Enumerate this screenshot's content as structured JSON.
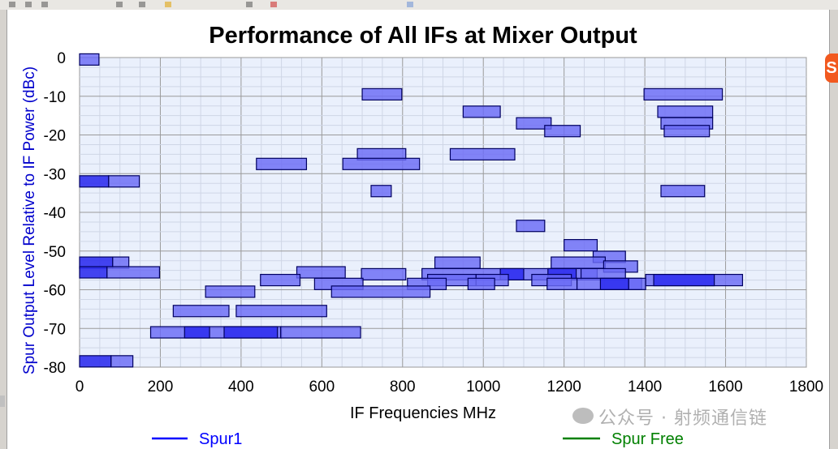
{
  "toolbar": {
    "icons": [
      "arrow-icon",
      "select-icon",
      "zoom-icon",
      "chart-icon",
      "grid-icon",
      "star-icon",
      "copy-icon",
      "close-icon",
      "export-icon"
    ]
  },
  "side_badge": "S",
  "watermark": "公众号 · 射频通信链",
  "chart_data": {
    "type": "bar",
    "title": "Performance of All IFs at Mixer Output",
    "xlabel": "IF Frequencies MHz",
    "ylabel": "Spur Output Level Relative to IF Power (dBc)",
    "xlim": [
      0,
      1800
    ],
    "ylim": [
      -80,
      0
    ],
    "xticks": [
      "0",
      "200",
      "400",
      "600",
      "800",
      "1000",
      "1200",
      "1400",
      "1600",
      "1800"
    ],
    "yticks": [
      "0",
      "-10",
      "-20",
      "-30",
      "-40",
      "-50",
      "-60",
      "-70",
      "-80"
    ],
    "grid": true,
    "legend_position": "bottom",
    "legend": [
      {
        "name": "Spur1",
        "color": "#0000ff"
      },
      {
        "name": "Spur Free",
        "color": "#008000"
      }
    ],
    "colors": {
      "plot_bg": "#eaf0fc",
      "bar_fill": "#6a6af5",
      "bar_fill_dark": "#3030ee",
      "bar_stroke": "#000060",
      "ylabel": "#0000cc",
      "grid": "#9a9a9a"
    },
    "spurs": [
      {
        "x0": 0,
        "x1": 48,
        "y": -0.5,
        "dark": false
      },
      {
        "x0": 700,
        "x1": 798,
        "y": -9.5,
        "dark": false
      },
      {
        "x0": 1398,
        "x1": 1592,
        "y": -9.5,
        "dark": false
      },
      {
        "x0": 950,
        "x1": 1042,
        "y": -14,
        "dark": false
      },
      {
        "x0": 1082,
        "x1": 1168,
        "y": -17,
        "dark": false
      },
      {
        "x0": 1152,
        "x1": 1240,
        "y": -19,
        "dark": false
      },
      {
        "x0": 1432,
        "x1": 1568,
        "y": -14,
        "dark": false
      },
      {
        "x0": 1440,
        "x1": 1568,
        "y": -17,
        "dark": false
      },
      {
        "x0": 1448,
        "x1": 1560,
        "y": -19,
        "dark": false
      },
      {
        "x0": 688,
        "x1": 808,
        "y": -25,
        "dark": false
      },
      {
        "x0": 918,
        "x1": 1078,
        "y": -25,
        "dark": false
      },
      {
        "x0": 438,
        "x1": 562,
        "y": -27.5,
        "dark": false
      },
      {
        "x0": 652,
        "x1": 842,
        "y": -27.5,
        "dark": false
      },
      {
        "x0": 0,
        "x1": 72,
        "y": -32,
        "dark": true
      },
      {
        "x0": 72,
        "x1": 148,
        "y": -32,
        "dark": false
      },
      {
        "x0": 722,
        "x1": 772,
        "y": -34.5,
        "dark": false
      },
      {
        "x0": 1440,
        "x1": 1548,
        "y": -34.5,
        "dark": false
      },
      {
        "x0": 1082,
        "x1": 1152,
        "y": -43.5,
        "dark": false
      },
      {
        "x0": 1200,
        "x1": 1282,
        "y": -48.5,
        "dark": false
      },
      {
        "x0": 1272,
        "x1": 1352,
        "y": -51.5,
        "dark": false
      },
      {
        "x0": 0,
        "x1": 82,
        "y": -53,
        "dark": true
      },
      {
        "x0": 82,
        "x1": 122,
        "y": -53,
        "dark": false
      },
      {
        "x0": 880,
        "x1": 992,
        "y": -53,
        "dark": false
      },
      {
        "x0": 1168,
        "x1": 1302,
        "y": -53,
        "dark": false
      },
      {
        "x0": 1298,
        "x1": 1382,
        "y": -54,
        "dark": false
      },
      {
        "x0": 0,
        "x1": 68,
        "y": -55.5,
        "dark": true
      },
      {
        "x0": 68,
        "x1": 198,
        "y": -55.5,
        "dark": false
      },
      {
        "x0": 538,
        "x1": 658,
        "y": -55.5,
        "dark": false
      },
      {
        "x0": 698,
        "x1": 808,
        "y": -56,
        "dark": false
      },
      {
        "x0": 848,
        "x1": 1282,
        "y": -56,
        "dark": false
      },
      {
        "x0": 1042,
        "x1": 1100,
        "y": -56,
        "dark": true
      },
      {
        "x0": 1160,
        "x1": 1230,
        "y": -56,
        "dark": true
      },
      {
        "x0": 1242,
        "x1": 1352,
        "y": -56,
        "dark": false
      },
      {
        "x0": 448,
        "x1": 546,
        "y": -57.5,
        "dark": false
      },
      {
        "x0": 862,
        "x1": 982,
        "y": -57.5,
        "dark": false
      },
      {
        "x0": 982,
        "x1": 1062,
        "y": -57.5,
        "dark": false
      },
      {
        "x0": 1120,
        "x1": 1218,
        "y": -57.5,
        "dark": false
      },
      {
        "x0": 1402,
        "x1": 1642,
        "y": -57.5,
        "dark": false
      },
      {
        "x0": 1422,
        "x1": 1572,
        "y": -57.5,
        "dark": true
      },
      {
        "x0": 582,
        "x1": 702,
        "y": -58.5,
        "dark": false
      },
      {
        "x0": 812,
        "x1": 908,
        "y": -58.5,
        "dark": false
      },
      {
        "x0": 962,
        "x1": 1028,
        "y": -58.5,
        "dark": false
      },
      {
        "x0": 1158,
        "x1": 1232,
        "y": -58.5,
        "dark": false
      },
      {
        "x0": 1232,
        "x1": 1392,
        "y": -58.5,
        "dark": false
      },
      {
        "x0": 1290,
        "x1": 1360,
        "y": -58.5,
        "dark": true
      },
      {
        "x0": 1360,
        "x1": 1402,
        "y": -58.5,
        "dark": false
      },
      {
        "x0": 312,
        "x1": 434,
        "y": -60.5,
        "dark": false
      },
      {
        "x0": 624,
        "x1": 868,
        "y": -60.5,
        "dark": false
      },
      {
        "x0": 232,
        "x1": 370,
        "y": -65.5,
        "dark": false
      },
      {
        "x0": 388,
        "x1": 612,
        "y": -65.5,
        "dark": false
      },
      {
        "x0": 176,
        "x1": 500,
        "y": -71,
        "dark": false
      },
      {
        "x0": 260,
        "x1": 322,
        "y": -71,
        "dark": true
      },
      {
        "x0": 358,
        "x1": 490,
        "y": -71,
        "dark": true
      },
      {
        "x0": 498,
        "x1": 696,
        "y": -71,
        "dark": false
      },
      {
        "x0": 0,
        "x1": 78,
        "y": -78.5,
        "dark": true
      },
      {
        "x0": 78,
        "x1": 132,
        "y": -78.5,
        "dark": false
      }
    ]
  }
}
